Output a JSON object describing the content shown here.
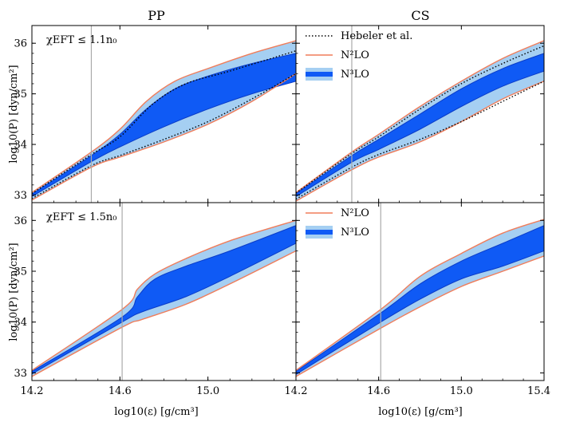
{
  "chart_data": {
    "type": "area",
    "column_titles": [
      "PP",
      "CS"
    ],
    "xlabel": "log10(ε) [g/cm³]",
    "ylabel": "log10(P) [dyn/cm²]",
    "x_ticks": [
      "14.2",
      "14.6",
      "15.0",
      "14.2",
      "14.6",
      "15.0",
      "15.4"
    ],
    "y_ticks": [
      "33",
      "34",
      "35",
      "36"
    ],
    "xlim": [
      14.2,
      15.4
    ],
    "ylim": [
      32.85,
      36.35
    ],
    "legend_labels": {
      "hebeler": "Hebeler et al.",
      "n2lo": "N²LO",
      "n3lo": "N³LO"
    },
    "colors": {
      "n2lo_band": "#a5cff2",
      "n2lo_edge": "#f07d5a",
      "n3lo_band": "#0f5af5",
      "n3lo_edge": "#0a3cc8",
      "hebeler": "#000000",
      "vline": "#aaaaaa"
    },
    "panels": [
      {
        "id": "pp-top",
        "annotation": "χEFT ≤ 1.1n₀",
        "vline_x": 14.47,
        "legend": [],
        "n2lo_upper": [
          [
            14.2,
            33.05
          ],
          [
            14.47,
            33.85
          ],
          [
            14.6,
            34.3
          ],
          [
            14.72,
            34.85
          ],
          [
            14.85,
            35.25
          ],
          [
            15.0,
            35.5
          ],
          [
            15.2,
            35.8
          ],
          [
            15.4,
            36.05
          ]
        ],
        "n2lo_lower": [
          [
            14.2,
            32.9
          ],
          [
            14.47,
            33.55
          ],
          [
            14.6,
            33.75
          ],
          [
            14.8,
            34.05
          ],
          [
            15.0,
            34.4
          ],
          [
            15.2,
            34.85
          ],
          [
            15.4,
            35.4
          ]
        ],
        "n3lo_upper": [
          [
            14.2,
            33.02
          ],
          [
            14.47,
            33.78
          ],
          [
            14.6,
            34.2
          ],
          [
            14.72,
            34.7
          ],
          [
            14.85,
            35.1
          ],
          [
            15.0,
            35.35
          ],
          [
            15.2,
            35.6
          ],
          [
            15.4,
            35.8
          ]
        ],
        "n3lo_lower": [
          [
            14.2,
            32.97
          ],
          [
            14.47,
            33.66
          ],
          [
            14.6,
            33.95
          ],
          [
            14.8,
            34.35
          ],
          [
            15.0,
            34.7
          ],
          [
            15.2,
            35.0
          ],
          [
            15.4,
            35.25
          ]
        ],
        "hebeler_upper": [
          [
            14.2,
            33.03
          ],
          [
            14.47,
            33.8
          ],
          [
            14.6,
            34.15
          ],
          [
            14.75,
            34.8
          ],
          [
            14.9,
            35.2
          ],
          [
            15.1,
            35.45
          ],
          [
            15.4,
            35.85
          ]
        ],
        "hebeler_lower": [
          [
            14.2,
            32.93
          ],
          [
            14.47,
            33.58
          ],
          [
            14.6,
            33.78
          ],
          [
            14.8,
            34.1
          ],
          [
            15.0,
            34.45
          ],
          [
            15.2,
            34.9
          ],
          [
            15.4,
            35.4
          ]
        ]
      },
      {
        "id": "cs-top",
        "annotation": "",
        "vline_x": 14.47,
        "legend": [
          "hebeler",
          "n2lo",
          "n3lo"
        ],
        "n2lo_upper": [
          [
            14.2,
            33.05
          ],
          [
            14.47,
            33.85
          ],
          [
            14.6,
            34.2
          ],
          [
            14.8,
            34.75
          ],
          [
            15.0,
            35.25
          ],
          [
            15.2,
            35.7
          ],
          [
            15.4,
            36.05
          ]
        ],
        "n2lo_lower": [
          [
            14.2,
            32.88
          ],
          [
            14.47,
            33.5
          ],
          [
            14.6,
            33.75
          ],
          [
            14.8,
            34.05
          ],
          [
            15.0,
            34.45
          ],
          [
            15.2,
            34.9
          ],
          [
            15.4,
            35.25
          ]
        ],
        "n3lo_upper": [
          [
            14.2,
            33.03
          ],
          [
            14.47,
            33.78
          ],
          [
            14.6,
            34.1
          ],
          [
            14.8,
            34.6
          ],
          [
            15.0,
            35.1
          ],
          [
            15.2,
            35.5
          ],
          [
            15.4,
            35.8
          ]
        ],
        "n3lo_lower": [
          [
            14.2,
            32.97
          ],
          [
            14.47,
            33.65
          ],
          [
            14.6,
            33.9
          ],
          [
            14.8,
            34.3
          ],
          [
            15.0,
            34.75
          ],
          [
            15.2,
            35.15
          ],
          [
            15.4,
            35.45
          ]
        ],
        "hebeler_upper": [
          [
            14.2,
            33.04
          ],
          [
            14.47,
            33.82
          ],
          [
            14.6,
            34.15
          ],
          [
            14.8,
            34.7
          ],
          [
            15.0,
            35.2
          ],
          [
            15.2,
            35.6
          ],
          [
            15.4,
            35.95
          ]
        ],
        "hebeler_lower": [
          [
            14.2,
            32.92
          ],
          [
            14.47,
            33.55
          ],
          [
            14.6,
            33.8
          ],
          [
            14.8,
            34.1
          ],
          [
            15.0,
            34.45
          ],
          [
            15.2,
            34.85
          ],
          [
            15.4,
            35.25
          ]
        ]
      },
      {
        "id": "pp-bottom",
        "annotation": "χEFT ≤ 1.5n₀",
        "vline_x": 14.61,
        "legend": [],
        "n2lo_upper": [
          [
            14.2,
            33.05
          ],
          [
            14.61,
            34.25
          ],
          [
            14.68,
            34.65
          ],
          [
            14.76,
            34.95
          ],
          [
            14.9,
            35.25
          ],
          [
            15.1,
            35.6
          ],
          [
            15.4,
            36.0
          ]
        ],
        "n2lo_lower": [
          [
            14.2,
            32.93
          ],
          [
            14.61,
            33.9
          ],
          [
            14.7,
            34.05
          ],
          [
            14.9,
            34.35
          ],
          [
            15.1,
            34.75
          ],
          [
            15.4,
            35.4
          ]
        ],
        "n3lo_upper": [
          [
            14.2,
            33.03
          ],
          [
            14.61,
            34.1
          ],
          [
            14.68,
            34.5
          ],
          [
            14.76,
            34.85
          ],
          [
            14.9,
            35.1
          ],
          [
            15.1,
            35.4
          ],
          [
            15.4,
            35.9
          ]
        ],
        "n3lo_lower": [
          [
            14.2,
            32.98
          ],
          [
            14.61,
            34.0
          ],
          [
            14.7,
            34.2
          ],
          [
            14.9,
            34.5
          ],
          [
            15.1,
            34.9
          ],
          [
            15.4,
            35.55
          ]
        ],
        "hebeler_upper": [],
        "hebeler_lower": []
      },
      {
        "id": "cs-bottom",
        "annotation": "",
        "vline_x": 14.61,
        "legend": [
          "n2lo",
          "n3lo"
        ],
        "n2lo_upper": [
          [
            14.2,
            33.05
          ],
          [
            14.61,
            34.25
          ],
          [
            14.8,
            34.9
          ],
          [
            15.0,
            35.35
          ],
          [
            15.2,
            35.75
          ],
          [
            15.4,
            36.02
          ]
        ],
        "n2lo_lower": [
          [
            14.2,
            32.93
          ],
          [
            14.61,
            33.88
          ],
          [
            14.8,
            34.3
          ],
          [
            15.0,
            34.7
          ],
          [
            15.2,
            35.0
          ],
          [
            15.4,
            35.3
          ]
        ],
        "n3lo_upper": [
          [
            14.2,
            33.03
          ],
          [
            14.61,
            34.18
          ],
          [
            14.8,
            34.75
          ],
          [
            15.0,
            35.2
          ],
          [
            15.2,
            35.55
          ],
          [
            15.4,
            35.9
          ]
        ],
        "n3lo_lower": [
          [
            14.2,
            32.97
          ],
          [
            14.61,
            34.0
          ],
          [
            14.8,
            34.45
          ],
          [
            15.0,
            34.85
          ],
          [
            15.2,
            35.1
          ],
          [
            15.4,
            35.4
          ]
        ],
        "hebeler_upper": [],
        "hebeler_lower": []
      }
    ]
  }
}
